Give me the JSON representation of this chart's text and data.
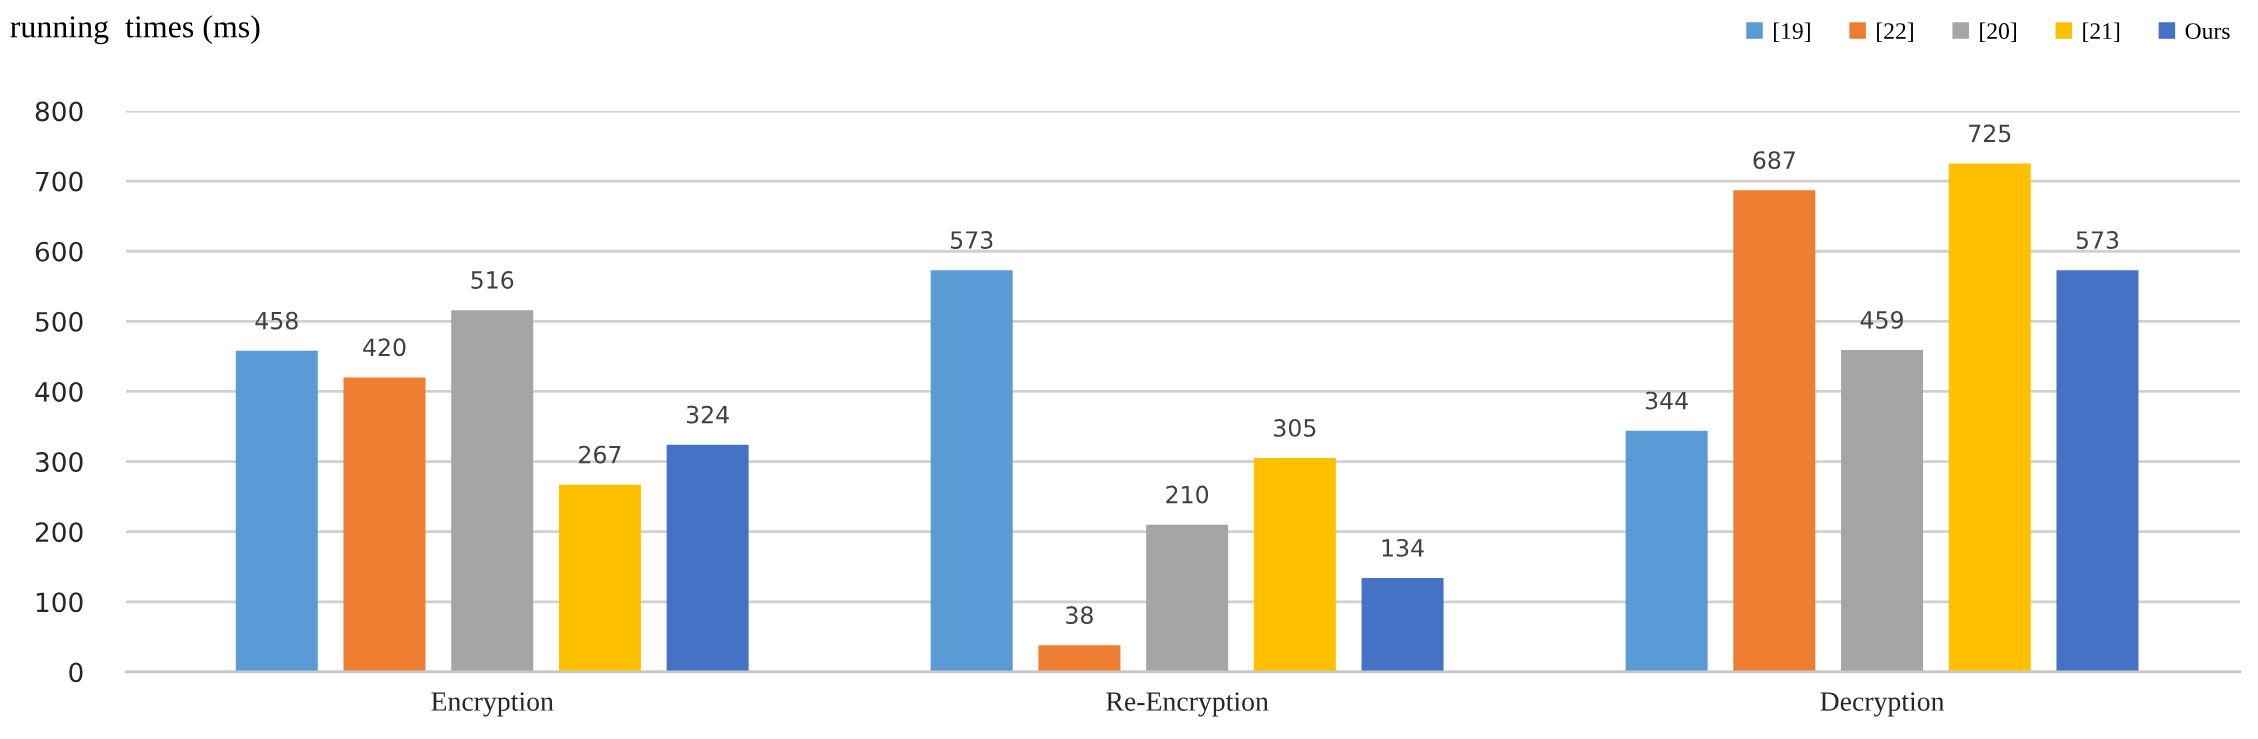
{
  "chart_data": {
    "type": "bar",
    "ylabel": "running  times (ms)",
    "categories": [
      "Encryption",
      "Re-Encryption",
      "Decryption"
    ],
    "series": [
      {
        "name": "[19]",
        "color": "#5b9bd5",
        "values": [
          458,
          573,
          344
        ]
      },
      {
        "name": "[22]",
        "color": "#ed7d31",
        "values": [
          420,
          38,
          687
        ]
      },
      {
        "name": "[20]",
        "color": "#a5a5a5",
        "values": [
          516,
          210,
          459
        ]
      },
      {
        "name": "[21]",
        "color": "#ffc000",
        "values": [
          267,
          305,
          725
        ]
      },
      {
        "name": "Ours",
        "color": "#4472c4",
        "values": [
          324,
          134,
          573
        ]
      }
    ],
    "ylim": [
      0,
      800
    ],
    "yticks": [
      0,
      100,
      200,
      300,
      400,
      500,
      600,
      700,
      800
    ],
    "grid": "y",
    "legend": "top right",
    "data_labels": true
  }
}
